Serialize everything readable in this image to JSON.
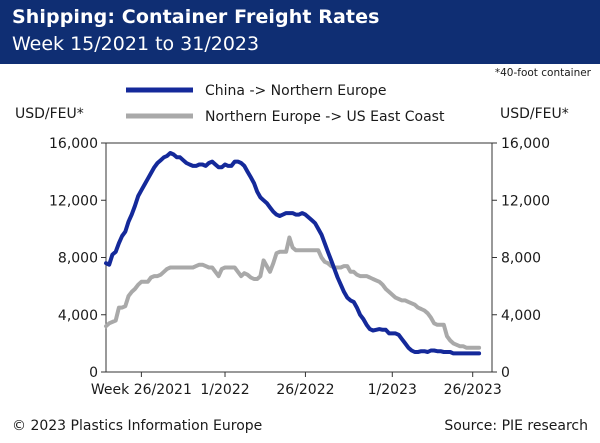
{
  "header": {
    "title": "Shipping: Container Freight Rates",
    "subtitle": "Week 15/2021 to 31/2023"
  },
  "footnote": "*40-foot container",
  "footer": {
    "copyright": "© 2023 Plastics Information Europe",
    "source": "Source: PIE research"
  },
  "colors": {
    "header_bg": "#0f2e73",
    "series_china": "#14299a",
    "series_europe": "#a9a9a9"
  },
  "chart_data": {
    "type": "line",
    "ylabel_left": "USD/FEU*",
    "ylabel_right": "USD/FEU*",
    "ylim": [
      0,
      16000
    ],
    "y_ticks": [
      0,
      4000,
      8000,
      12000,
      16000
    ],
    "y_tick_labels": [
      "0",
      "4,000",
      "8,000",
      "12,000",
      "16,000"
    ],
    "xlim": [
      0,
      120
    ],
    "x_ticks": [
      {
        "t": 11,
        "label": "Week 26/2021"
      },
      {
        "t": 37,
        "label": "1/2022"
      },
      {
        "t": 62,
        "label": "26/2022"
      },
      {
        "t": 89,
        "label": "1/2023"
      },
      {
        "t": 114,
        "label": "26/2023"
      }
    ],
    "legend_position": "top-center",
    "series": [
      {
        "name": "China -> Northern Europe",
        "color": "#14299a",
        "points": [
          [
            0,
            7600
          ],
          [
            1,
            7500
          ],
          [
            2,
            8200
          ],
          [
            3,
            8400
          ],
          [
            4,
            9000
          ],
          [
            5,
            9500
          ],
          [
            6,
            9800
          ],
          [
            7,
            10500
          ],
          [
            8,
            11000
          ],
          [
            9,
            11600
          ],
          [
            10,
            12300
          ],
          [
            11,
            12700
          ],
          [
            12,
            13100
          ],
          [
            13,
            13500
          ],
          [
            14,
            13900
          ],
          [
            15,
            14300
          ],
          [
            16,
            14600
          ],
          [
            17,
            14800
          ],
          [
            18,
            15000
          ],
          [
            19,
            15100
          ],
          [
            20,
            15300
          ],
          [
            21,
            15200
          ],
          [
            22,
            15000
          ],
          [
            23,
            15000
          ],
          [
            24,
            14800
          ],
          [
            25,
            14600
          ],
          [
            26,
            14500
          ],
          [
            27,
            14400
          ],
          [
            28,
            14400
          ],
          [
            29,
            14500
          ],
          [
            30,
            14500
          ],
          [
            31,
            14400
          ],
          [
            32,
            14600
          ],
          [
            33,
            14700
          ],
          [
            34,
            14500
          ],
          [
            35,
            14300
          ],
          [
            36,
            14300
          ],
          [
            37,
            14500
          ],
          [
            38,
            14400
          ],
          [
            39,
            14400
          ],
          [
            40,
            14700
          ],
          [
            41,
            14700
          ],
          [
            42,
            14600
          ],
          [
            43,
            14400
          ],
          [
            44,
            14000
          ],
          [
            45,
            13600
          ],
          [
            46,
            13200
          ],
          [
            47,
            12600
          ],
          [
            48,
            12200
          ],
          [
            49,
            12000
          ],
          [
            50,
            11800
          ],
          [
            51,
            11500
          ],
          [
            52,
            11200
          ],
          [
            53,
            11000
          ],
          [
            54,
            10900
          ],
          [
            55,
            11000
          ],
          [
            56,
            11100
          ],
          [
            57,
            11100
          ],
          [
            58,
            11100
          ],
          [
            59,
            11000
          ],
          [
            60,
            11000
          ],
          [
            61,
            11100
          ],
          [
            62,
            11000
          ],
          [
            63,
            10800
          ],
          [
            64,
            10600
          ],
          [
            65,
            10400
          ],
          [
            66,
            10000
          ],
          [
            67,
            9600
          ],
          [
            68,
            9000
          ],
          [
            69,
            8400
          ],
          [
            70,
            7800
          ],
          [
            71,
            7200
          ],
          [
            72,
            6600
          ],
          [
            73,
            6100
          ],
          [
            74,
            5600
          ],
          [
            75,
            5200
          ],
          [
            76,
            5000
          ],
          [
            77,
            4900
          ],
          [
            78,
            4500
          ],
          [
            79,
            4000
          ],
          [
            80,
            3700
          ],
          [
            81,
            3300
          ],
          [
            82,
            3000
          ],
          [
            83,
            2900
          ],
          [
            84,
            2950
          ],
          [
            85,
            3000
          ],
          [
            86,
            2950
          ],
          [
            87,
            2950
          ],
          [
            88,
            2700
          ],
          [
            89,
            2700
          ],
          [
            90,
            2700
          ],
          [
            91,
            2600
          ],
          [
            92,
            2300
          ],
          [
            93,
            2000
          ],
          [
            94,
            1700
          ],
          [
            95,
            1500
          ],
          [
            96,
            1400
          ],
          [
            97,
            1400
          ],
          [
            98,
            1450
          ],
          [
            99,
            1450
          ],
          [
            100,
            1400
          ],
          [
            101,
            1500
          ],
          [
            102,
            1500
          ],
          [
            103,
            1450
          ],
          [
            104,
            1450
          ],
          [
            105,
            1400
          ],
          [
            106,
            1400
          ],
          [
            107,
            1400
          ],
          [
            108,
            1300
          ],
          [
            109,
            1300
          ],
          [
            110,
            1300
          ],
          [
            111,
            1300
          ],
          [
            112,
            1300
          ],
          [
            113,
            1300
          ],
          [
            114,
            1300
          ],
          [
            115,
            1300
          ],
          [
            116,
            1300
          ]
        ]
      },
      {
        "name": "Northern Europe -> US East Coast",
        "color": "#a9a9a9",
        "points": [
          [
            0,
            3200
          ],
          [
            1,
            3400
          ],
          [
            2,
            3500
          ],
          [
            3,
            3600
          ],
          [
            4,
            4500
          ],
          [
            5,
            4500
          ],
          [
            6,
            4600
          ],
          [
            7,
            5300
          ],
          [
            8,
            5600
          ],
          [
            9,
            5800
          ],
          [
            10,
            6100
          ],
          [
            11,
            6300
          ],
          [
            12,
            6300
          ],
          [
            13,
            6300
          ],
          [
            14,
            6600
          ],
          [
            15,
            6700
          ],
          [
            16,
            6700
          ],
          [
            17,
            6800
          ],
          [
            18,
            7000
          ],
          [
            19,
            7200
          ],
          [
            20,
            7300
          ],
          [
            21,
            7300
          ],
          [
            22,
            7300
          ],
          [
            23,
            7300
          ],
          [
            24,
            7300
          ],
          [
            25,
            7300
          ],
          [
            26,
            7300
          ],
          [
            27,
            7300
          ],
          [
            28,
            7400
          ],
          [
            29,
            7500
          ],
          [
            30,
            7500
          ],
          [
            31,
            7400
          ],
          [
            32,
            7300
          ],
          [
            33,
            7300
          ],
          [
            34,
            7000
          ],
          [
            35,
            6700
          ],
          [
            36,
            7200
          ],
          [
            37,
            7300
          ],
          [
            38,
            7300
          ],
          [
            39,
            7300
          ],
          [
            40,
            7300
          ],
          [
            41,
            7000
          ],
          [
            42,
            6700
          ],
          [
            43,
            6900
          ],
          [
            44,
            6800
          ],
          [
            45,
            6600
          ],
          [
            46,
            6500
          ],
          [
            47,
            6500
          ],
          [
            48,
            6700
          ],
          [
            49,
            7800
          ],
          [
            50,
            7400
          ],
          [
            51,
            7000
          ],
          [
            52,
            7600
          ],
          [
            53,
            8300
          ],
          [
            54,
            8400
          ],
          [
            55,
            8400
          ],
          [
            56,
            8400
          ],
          [
            57,
            9400
          ],
          [
            58,
            8700
          ],
          [
            59,
            8500
          ],
          [
            60,
            8500
          ],
          [
            61,
            8500
          ],
          [
            62,
            8500
          ],
          [
            63,
            8500
          ],
          [
            64,
            8500
          ],
          [
            65,
            8500
          ],
          [
            66,
            8500
          ],
          [
            67,
            8000
          ],
          [
            68,
            7700
          ],
          [
            69,
            7600
          ],
          [
            70,
            7400
          ],
          [
            71,
            7300
          ],
          [
            72,
            7300
          ],
          [
            73,
            7300
          ],
          [
            74,
            7400
          ],
          [
            75,
            7400
          ],
          [
            76,
            7000
          ],
          [
            77,
            7000
          ],
          [
            78,
            6800
          ],
          [
            79,
            6700
          ],
          [
            80,
            6700
          ],
          [
            81,
            6700
          ],
          [
            82,
            6600
          ],
          [
            83,
            6500
          ],
          [
            84,
            6400
          ],
          [
            85,
            6300
          ],
          [
            86,
            6100
          ],
          [
            87,
            5800
          ],
          [
            88,
            5600
          ],
          [
            89,
            5400
          ],
          [
            90,
            5200
          ],
          [
            91,
            5100
          ],
          [
            92,
            5000
          ],
          [
            93,
            5000
          ],
          [
            94,
            4900
          ],
          [
            95,
            4800
          ],
          [
            96,
            4700
          ],
          [
            97,
            4500
          ],
          [
            98,
            4400
          ],
          [
            99,
            4300
          ],
          [
            100,
            4100
          ],
          [
            101,
            3800
          ],
          [
            102,
            3400
          ],
          [
            103,
            3300
          ],
          [
            104,
            3300
          ],
          [
            105,
            3300
          ],
          [
            106,
            2500
          ],
          [
            107,
            2200
          ],
          [
            108,
            2000
          ],
          [
            109,
            1900
          ],
          [
            110,
            1800
          ],
          [
            111,
            1800
          ],
          [
            112,
            1700
          ],
          [
            113,
            1700
          ],
          [
            114,
            1700
          ],
          [
            115,
            1700
          ],
          [
            116,
            1700
          ]
        ]
      }
    ]
  }
}
